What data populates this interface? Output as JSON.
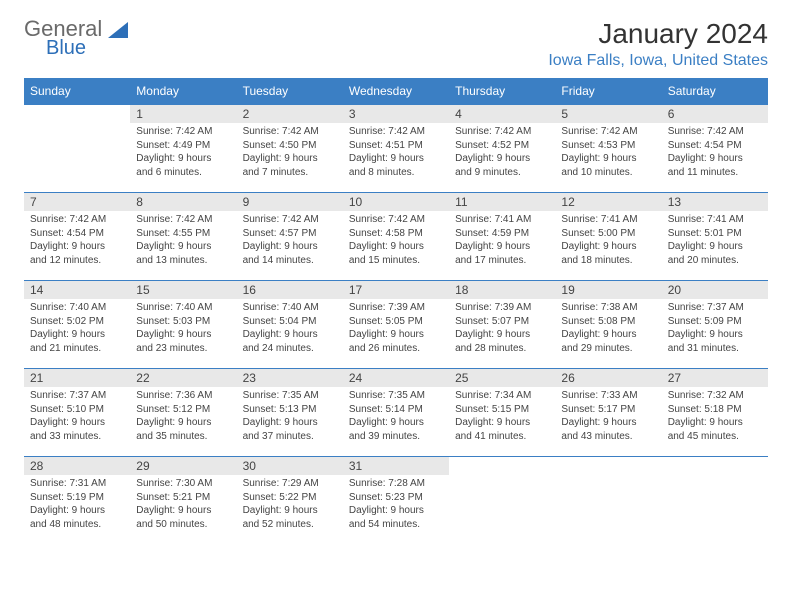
{
  "brand": {
    "name": "General",
    "sub": "Blue"
  },
  "title": "January 2024",
  "location": "Iowa Falls, Iowa, United States",
  "colors": {
    "header_bg": "#3b7fc4",
    "header_text": "#ffffff",
    "daynum_bg": "#e8e8e8",
    "border": "#3b7fc4",
    "title_color": "#333333",
    "location_color": "#3b7fc4",
    "logo_gray": "#6a6a6a",
    "logo_blue": "#2d6fb8",
    "background": "#ffffff"
  },
  "typography": {
    "title_fontsize": 28,
    "location_fontsize": 16,
    "header_fontsize": 12,
    "daynum_fontsize": 12,
    "body_fontsize": 10
  },
  "weekdays": [
    "Sunday",
    "Monday",
    "Tuesday",
    "Wednesday",
    "Thursday",
    "Friday",
    "Saturday"
  ],
  "grid": [
    [
      null,
      {
        "n": "1",
        "lines": [
          "Sunrise: 7:42 AM",
          "Sunset: 4:49 PM",
          "Daylight: 9 hours",
          "and 6 minutes."
        ]
      },
      {
        "n": "2",
        "lines": [
          "Sunrise: 7:42 AM",
          "Sunset: 4:50 PM",
          "Daylight: 9 hours",
          "and 7 minutes."
        ]
      },
      {
        "n": "3",
        "lines": [
          "Sunrise: 7:42 AM",
          "Sunset: 4:51 PM",
          "Daylight: 9 hours",
          "and 8 minutes."
        ]
      },
      {
        "n": "4",
        "lines": [
          "Sunrise: 7:42 AM",
          "Sunset: 4:52 PM",
          "Daylight: 9 hours",
          "and 9 minutes."
        ]
      },
      {
        "n": "5",
        "lines": [
          "Sunrise: 7:42 AM",
          "Sunset: 4:53 PM",
          "Daylight: 9 hours",
          "and 10 minutes."
        ]
      },
      {
        "n": "6",
        "lines": [
          "Sunrise: 7:42 AM",
          "Sunset: 4:54 PM",
          "Daylight: 9 hours",
          "and 11 minutes."
        ]
      }
    ],
    [
      {
        "n": "7",
        "lines": [
          "Sunrise: 7:42 AM",
          "Sunset: 4:54 PM",
          "Daylight: 9 hours",
          "and 12 minutes."
        ]
      },
      {
        "n": "8",
        "lines": [
          "Sunrise: 7:42 AM",
          "Sunset: 4:55 PM",
          "Daylight: 9 hours",
          "and 13 minutes."
        ]
      },
      {
        "n": "9",
        "lines": [
          "Sunrise: 7:42 AM",
          "Sunset: 4:57 PM",
          "Daylight: 9 hours",
          "and 14 minutes."
        ]
      },
      {
        "n": "10",
        "lines": [
          "Sunrise: 7:42 AM",
          "Sunset: 4:58 PM",
          "Daylight: 9 hours",
          "and 15 minutes."
        ]
      },
      {
        "n": "11",
        "lines": [
          "Sunrise: 7:41 AM",
          "Sunset: 4:59 PM",
          "Daylight: 9 hours",
          "and 17 minutes."
        ]
      },
      {
        "n": "12",
        "lines": [
          "Sunrise: 7:41 AM",
          "Sunset: 5:00 PM",
          "Daylight: 9 hours",
          "and 18 minutes."
        ]
      },
      {
        "n": "13",
        "lines": [
          "Sunrise: 7:41 AM",
          "Sunset: 5:01 PM",
          "Daylight: 9 hours",
          "and 20 minutes."
        ]
      }
    ],
    [
      {
        "n": "14",
        "lines": [
          "Sunrise: 7:40 AM",
          "Sunset: 5:02 PM",
          "Daylight: 9 hours",
          "and 21 minutes."
        ]
      },
      {
        "n": "15",
        "lines": [
          "Sunrise: 7:40 AM",
          "Sunset: 5:03 PM",
          "Daylight: 9 hours",
          "and 23 minutes."
        ]
      },
      {
        "n": "16",
        "lines": [
          "Sunrise: 7:40 AM",
          "Sunset: 5:04 PM",
          "Daylight: 9 hours",
          "and 24 minutes."
        ]
      },
      {
        "n": "17",
        "lines": [
          "Sunrise: 7:39 AM",
          "Sunset: 5:05 PM",
          "Daylight: 9 hours",
          "and 26 minutes."
        ]
      },
      {
        "n": "18",
        "lines": [
          "Sunrise: 7:39 AM",
          "Sunset: 5:07 PM",
          "Daylight: 9 hours",
          "and 28 minutes."
        ]
      },
      {
        "n": "19",
        "lines": [
          "Sunrise: 7:38 AM",
          "Sunset: 5:08 PM",
          "Daylight: 9 hours",
          "and 29 minutes."
        ]
      },
      {
        "n": "20",
        "lines": [
          "Sunrise: 7:37 AM",
          "Sunset: 5:09 PM",
          "Daylight: 9 hours",
          "and 31 minutes."
        ]
      }
    ],
    [
      {
        "n": "21",
        "lines": [
          "Sunrise: 7:37 AM",
          "Sunset: 5:10 PM",
          "Daylight: 9 hours",
          "and 33 minutes."
        ]
      },
      {
        "n": "22",
        "lines": [
          "Sunrise: 7:36 AM",
          "Sunset: 5:12 PM",
          "Daylight: 9 hours",
          "and 35 minutes."
        ]
      },
      {
        "n": "23",
        "lines": [
          "Sunrise: 7:35 AM",
          "Sunset: 5:13 PM",
          "Daylight: 9 hours",
          "and 37 minutes."
        ]
      },
      {
        "n": "24",
        "lines": [
          "Sunrise: 7:35 AM",
          "Sunset: 5:14 PM",
          "Daylight: 9 hours",
          "and 39 minutes."
        ]
      },
      {
        "n": "25",
        "lines": [
          "Sunrise: 7:34 AM",
          "Sunset: 5:15 PM",
          "Daylight: 9 hours",
          "and 41 minutes."
        ]
      },
      {
        "n": "26",
        "lines": [
          "Sunrise: 7:33 AM",
          "Sunset: 5:17 PM",
          "Daylight: 9 hours",
          "and 43 minutes."
        ]
      },
      {
        "n": "27",
        "lines": [
          "Sunrise: 7:32 AM",
          "Sunset: 5:18 PM",
          "Daylight: 9 hours",
          "and 45 minutes."
        ]
      }
    ],
    [
      {
        "n": "28",
        "lines": [
          "Sunrise: 7:31 AM",
          "Sunset: 5:19 PM",
          "Daylight: 9 hours",
          "and 48 minutes."
        ]
      },
      {
        "n": "29",
        "lines": [
          "Sunrise: 7:30 AM",
          "Sunset: 5:21 PM",
          "Daylight: 9 hours",
          "and 50 minutes."
        ]
      },
      {
        "n": "30",
        "lines": [
          "Sunrise: 7:29 AM",
          "Sunset: 5:22 PM",
          "Daylight: 9 hours",
          "and 52 minutes."
        ]
      },
      {
        "n": "31",
        "lines": [
          "Sunrise: 7:28 AM",
          "Sunset: 5:23 PM",
          "Daylight: 9 hours",
          "and 54 minutes."
        ]
      },
      null,
      null,
      null
    ]
  ]
}
